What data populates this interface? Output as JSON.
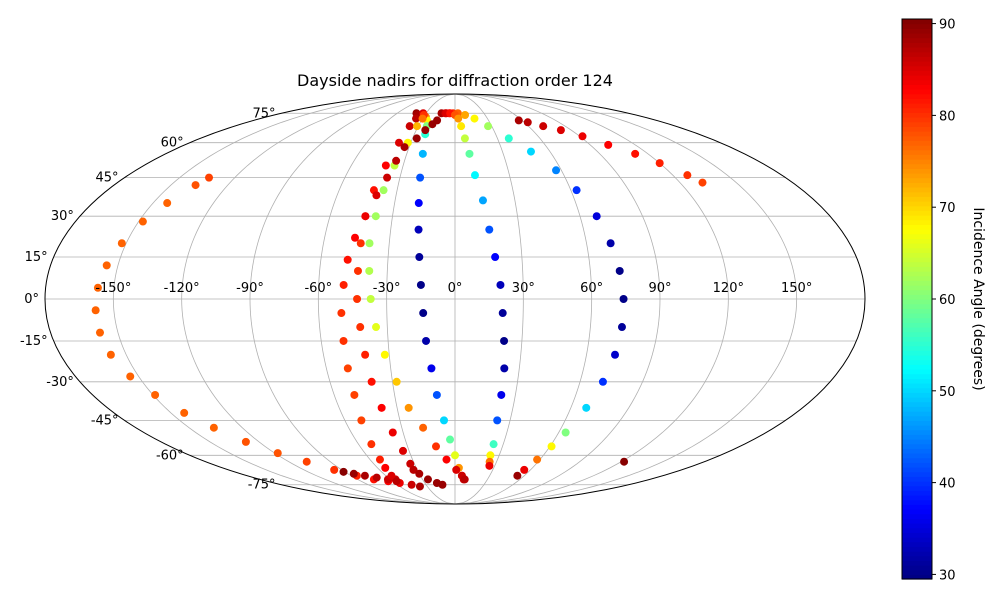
{
  "chart_data": {
    "type": "scatter",
    "projection": "mollweide",
    "title": "Dayside nadirs for diffraction order 124",
    "x_tick_labels": [
      "-150°",
      "-120°",
      "-90°",
      "-60°",
      "-30°",
      "0°",
      "30°",
      "60°",
      "90°",
      "120°",
      "150°"
    ],
    "x_tick_values": [
      -150,
      -120,
      -90,
      -60,
      -30,
      0,
      30,
      60,
      90,
      120,
      150
    ],
    "y_tick_labels": [
      "-75°",
      "-60°",
      "-45°",
      "-30°",
      "-15°",
      "0°",
      "15°",
      "30°",
      "45°",
      "60°",
      "75°"
    ],
    "y_tick_values": [
      -75,
      -60,
      -45,
      -30,
      -15,
      0,
      15,
      30,
      45,
      60,
      75
    ],
    "grid": true,
    "colormap": "jet",
    "colorbar": {
      "label": "Incidence Angle (degrees)",
      "range": [
        29.5,
        90.5
      ],
      "tick_values": [
        30,
        40,
        50,
        60,
        70,
        80,
        90
      ],
      "tick_labels": [
        "30",
        "40",
        "50",
        "60",
        "70",
        "80",
        "90"
      ],
      "position": "right"
    },
    "series": [
      {
        "points": [
          [
            -38,
            -76,
            88
          ],
          [
            -45,
            -75,
            86
          ],
          [
            -55,
            -74,
            84
          ],
          [
            -64,
            -73,
            83
          ],
          [
            -75,
            -72,
            82
          ],
          [
            -85,
            -70,
            81
          ],
          [
            -96,
            -67,
            80
          ],
          [
            -107,
            -63,
            79
          ],
          [
            -118,
            -59,
            78
          ],
          [
            -128,
            -54,
            78
          ],
          [
            -136,
            -48,
            77
          ],
          [
            -143,
            -42,
            77
          ],
          [
            -149,
            -35,
            77
          ],
          [
            -154,
            -28,
            77
          ],
          [
            -157,
            -20,
            77
          ],
          [
            -158,
            -12,
            77
          ],
          [
            -158,
            -4,
            77
          ],
          [
            -157,
            4,
            77
          ],
          [
            -155,
            12,
            77
          ],
          [
            -152,
            20,
            77
          ],
          [
            -148,
            28,
            77
          ],
          [
            -143,
            35,
            77
          ],
          [
            -137,
            42,
            78
          ],
          [
            -134,
            45,
            79
          ]
        ]
      },
      {
        "points": [
          [
            -91,
            -68,
            90
          ],
          [
            -85,
            -69,
            89
          ],
          [
            -78,
            -70,
            88
          ],
          [
            -70,
            -71,
            87
          ],
          [
            -62,
            -72,
            86
          ],
          [
            -55,
            -72,
            86
          ]
        ]
      },
      {
        "points": [
          [
            57,
            71,
            88
          ],
          [
            63,
            70,
            87
          ],
          [
            72,
            68,
            86
          ],
          [
            82,
            66,
            85
          ],
          [
            92,
            63,
            84
          ],
          [
            102,
            59,
            83
          ],
          [
            112,
            55,
            82
          ],
          [
            120,
            51,
            81
          ],
          [
            128,
            46,
            80
          ],
          [
            132,
            43,
            79
          ]
        ]
      },
      {
        "points": [
          [
            122,
            -63,
            90
          ]
        ]
      },
      {
        "points": [
          [
            -40,
            75,
            89
          ],
          [
            -37,
            74,
            88
          ],
          [
            -36,
            72,
            87
          ],
          [
            -37,
            68,
            86
          ],
          [
            -38,
            60,
            85
          ],
          [
            -40,
            50,
            83
          ],
          [
            -42,
            40,
            82
          ],
          [
            -43,
            30,
            81
          ],
          [
            -43,
            20,
            80
          ],
          [
            -43,
            10,
            80
          ],
          [
            -43,
            0,
            80
          ],
          [
            -42,
            -10,
            80
          ],
          [
            -41,
            -20,
            81
          ],
          [
            -40,
            -30,
            82
          ],
          [
            -38,
            -40,
            83
          ],
          [
            -36,
            -50,
            84
          ],
          [
            -34,
            -58,
            85
          ],
          [
            -33,
            -64,
            86
          ],
          [
            -33,
            -67,
            87
          ],
          [
            -30,
            -69,
            88
          ],
          [
            -25,
            -72,
            89
          ],
          [
            -18,
            -74,
            89
          ],
          [
            -13,
            -75,
            89
          ]
        ]
      },
      {
        "points": [
          [
            -31,
            74,
            82
          ],
          [
            -28,
            73,
            75
          ],
          [
            -25,
            71,
            68
          ],
          [
            -23,
            68,
            60
          ],
          [
            -22,
            64,
            55
          ],
          [
            -20,
            55,
            48
          ],
          [
            -19,
            45,
            42
          ],
          [
            -18,
            35,
            37
          ],
          [
            -17,
            25,
            33
          ],
          [
            -16,
            15,
            31
          ],
          [
            -15,
            5,
            30
          ],
          [
            -14,
            -5,
            30
          ],
          [
            -13,
            -15,
            32
          ],
          [
            -11,
            -25,
            36
          ],
          [
            -9,
            -35,
            42
          ],
          [
            -6,
            -45,
            50
          ],
          [
            -3,
            -53,
            58
          ],
          [
            0,
            -60,
            66
          ],
          [
            3,
            -66,
            74
          ],
          [
            6,
            -70,
            82
          ],
          [
            8,
            -72,
            86
          ]
        ]
      },
      {
        "points": [
          [
            -33,
            75,
            85
          ],
          [
            -31,
            74,
            80
          ],
          [
            -30,
            72,
            76
          ],
          [
            -31,
            68,
            72
          ],
          [
            -32,
            60,
            68
          ],
          [
            -35,
            50,
            64
          ],
          [
            -37,
            40,
            62
          ],
          [
            -38,
            30,
            62
          ],
          [
            -39,
            20,
            62
          ],
          [
            -38,
            10,
            63
          ],
          [
            -37,
            0,
            64
          ],
          [
            -35,
            -10,
            66
          ],
          [
            -32,
            -20,
            68
          ],
          [
            -28,
            -30,
            71
          ],
          [
            -24,
            -40,
            74
          ],
          [
            -18,
            -48,
            77
          ],
          [
            -12,
            -56,
            80
          ],
          [
            -6,
            -62,
            83
          ],
          [
            1,
            -67,
            85
          ],
          [
            6,
            -70,
            86
          ],
          [
            9,
            -72,
            87
          ]
        ]
      },
      {
        "points": [
          [
            -33,
            58,
            88
          ],
          [
            -35,
            52,
            87
          ],
          [
            -37,
            45,
            86
          ],
          [
            -40,
            38,
            85
          ],
          [
            -43,
            30,
            84
          ],
          [
            -46,
            22,
            83
          ],
          [
            -48,
            14,
            82
          ],
          [
            -49,
            5,
            81
          ],
          [
            -50,
            -5,
            80
          ],
          [
            -50,
            -15,
            80
          ],
          [
            -50,
            -25,
            79
          ],
          [
            -50,
            -35,
            79
          ],
          [
            -51,
            -45,
            79
          ],
          [
            -52,
            -55,
            80
          ],
          [
            -53,
            -62,
            81
          ],
          [
            -54,
            -66,
            83
          ],
          [
            -55,
            -70,
            85
          ],
          [
            -56,
            -73,
            87
          ]
        ]
      },
      {
        "points": [
          [
            -27,
            62,
            89
          ],
          [
            -23,
            66,
            89
          ],
          [
            -19,
            69,
            89
          ],
          [
            -16,
            71,
            89
          ]
        ]
      },
      {
        "points": [
          [
            -14,
            75,
            88
          ],
          [
            -10,
            75,
            86
          ],
          [
            -6,
            75,
            83
          ],
          [
            -2,
            75,
            80
          ],
          [
            3,
            75,
            77
          ],
          [
            10,
            74,
            73
          ],
          [
            18,
            72,
            68
          ],
          [
            27,
            68,
            62
          ],
          [
            38,
            62,
            55
          ],
          [
            48,
            56,
            50
          ],
          [
            57,
            48,
            45
          ],
          [
            63,
            40,
            40
          ],
          [
            68,
            30,
            35
          ],
          [
            71,
            20,
            32
          ],
          [
            73,
            10,
            30
          ],
          [
            74,
            0,
            30
          ],
          [
            74,
            -10,
            31
          ],
          [
            73,
            -20,
            34
          ],
          [
            71,
            -30,
            40
          ],
          [
            68,
            -40,
            50
          ],
          [
            64,
            -50,
            60
          ],
          [
            61,
            -56,
            68
          ],
          [
            58,
            -62,
            76
          ],
          [
            55,
            -67,
            84
          ],
          [
            54,
            -70,
            89
          ]
        ]
      },
      {
        "points": [
          [
            -9,
            75,
            85
          ],
          [
            -5,
            75,
            82
          ],
          [
            0,
            74,
            78
          ],
          [
            3,
            72,
            74
          ],
          [
            5,
            68,
            69
          ],
          [
            7,
            62,
            64
          ],
          [
            9,
            55,
            58
          ],
          [
            11,
            46,
            52
          ],
          [
            14,
            36,
            47
          ],
          [
            16,
            25,
            42
          ],
          [
            18,
            15,
            37
          ],
          [
            20,
            5,
            33
          ],
          [
            21,
            -5,
            31
          ],
          [
            22,
            -15,
            30
          ],
          [
            23,
            -25,
            32
          ],
          [
            23,
            -35,
            36
          ],
          [
            23,
            -45,
            42
          ],
          [
            24,
            -55,
            56
          ],
          [
            24,
            -60,
            68
          ],
          [
            25,
            -63,
            76
          ],
          [
            26,
            -65,
            84
          ]
        ]
      }
    ]
  }
}
